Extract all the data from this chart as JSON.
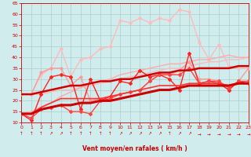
{
  "xlabel": "Vent moyen/en rafales ( km/h )",
  "xlim": [
    0,
    23
  ],
  "ylim": [
    10,
    65
  ],
  "yticks": [
    10,
    15,
    20,
    25,
    30,
    35,
    40,
    45,
    50,
    55,
    60,
    65
  ],
  "xticks": [
    0,
    1,
    2,
    3,
    4,
    5,
    6,
    7,
    8,
    9,
    10,
    11,
    12,
    13,
    14,
    15,
    16,
    17,
    18,
    19,
    20,
    21,
    22,
    23
  ],
  "bg_color": "#d0ecec",
  "grid_color": "#aacece",
  "lines": [
    {
      "comment": "light pink top line - no markers, straight-ish diagonal",
      "x": [
        0,
        1,
        2,
        3,
        4,
        5,
        6,
        7,
        8,
        9,
        10,
        11,
        12,
        13,
        14,
        15,
        16,
        17,
        18,
        19,
        20,
        21,
        22,
        23
      ],
      "y": [
        23,
        23,
        23,
        24,
        25,
        25,
        26,
        27,
        28,
        29,
        30,
        31,
        32,
        33,
        34,
        35,
        35,
        36,
        37,
        38,
        38,
        39,
        39,
        40
      ],
      "color": "#ffbbbb",
      "lw": 1.0,
      "marker": null,
      "ms": 0
    },
    {
      "comment": "light pink line with dots - high peaks 57-62",
      "x": [
        0,
        1,
        2,
        3,
        4,
        5,
        6,
        7,
        8,
        9,
        10,
        11,
        12,
        13,
        14,
        15,
        16,
        17,
        18,
        19,
        20,
        21,
        22,
        23
      ],
      "y": [
        23,
        23,
        32,
        35,
        44,
        31,
        39,
        40,
        44,
        45,
        57,
        56,
        58,
        56,
        58,
        57,
        62,
        61,
        47,
        39,
        46,
        36,
        35,
        35
      ],
      "color": "#ffbbbb",
      "lw": 1.0,
      "marker": "o",
      "ms": 2.0
    },
    {
      "comment": "medium pink line with dots - mid range",
      "x": [
        0,
        1,
        2,
        3,
        4,
        5,
        6,
        7,
        8,
        9,
        10,
        11,
        12,
        13,
        14,
        15,
        16,
        17,
        18,
        19,
        20,
        21,
        22,
        23
      ],
      "y": [
        23,
        23,
        33,
        35,
        35,
        27,
        31,
        20,
        21,
        22,
        23,
        24,
        25,
        29,
        32,
        32,
        34,
        38,
        30,
        30,
        29,
        25,
        29,
        35
      ],
      "color": "#ff9999",
      "lw": 1.0,
      "marker": "o",
      "ms": 2.0
    },
    {
      "comment": "medium pink upper diagonal - no markers",
      "x": [
        0,
        1,
        2,
        3,
        4,
        5,
        6,
        7,
        8,
        9,
        10,
        11,
        12,
        13,
        14,
        15,
        16,
        17,
        18,
        19,
        20,
        21,
        22,
        23
      ],
      "y": [
        14,
        15,
        17,
        19,
        22,
        24,
        26,
        28,
        29,
        30,
        32,
        33,
        34,
        35,
        36,
        37,
        37,
        38,
        39,
        39,
        40,
        41,
        40,
        40
      ],
      "color": "#ffaaaa",
      "lw": 1.0,
      "marker": null,
      "ms": 0
    },
    {
      "comment": "red with diamond markers - main wiggly",
      "x": [
        0,
        1,
        2,
        3,
        4,
        5,
        6,
        7,
        8,
        9,
        10,
        11,
        12,
        13,
        14,
        15,
        16,
        17,
        18,
        19,
        20,
        21,
        22,
        23
      ],
      "y": [
        14,
        11,
        23,
        31,
        32,
        31,
        16,
        30,
        20,
        22,
        29,
        28,
        34,
        31,
        32,
        30,
        25,
        42,
        28,
        29,
        28,
        25,
        29,
        28
      ],
      "color": "#ff2222",
      "lw": 1.0,
      "marker": "D",
      "ms": 2.0
    },
    {
      "comment": "red with diamond markers 2",
      "x": [
        0,
        1,
        2,
        3,
        4,
        5,
        6,
        7,
        8,
        9,
        10,
        11,
        12,
        13,
        14,
        15,
        16,
        17,
        18,
        19,
        20,
        21,
        22,
        23
      ],
      "y": [
        14,
        12,
        16,
        17,
        18,
        15,
        15,
        14,
        20,
        21,
        23,
        24,
        25,
        29,
        32,
        32,
        32,
        35,
        28,
        29,
        29,
        26,
        29,
        29
      ],
      "color": "#ff4444",
      "lw": 1.0,
      "marker": "D",
      "ms": 2.0
    },
    {
      "comment": "medium red no markers diagonal",
      "x": [
        0,
        1,
        2,
        3,
        4,
        5,
        6,
        7,
        8,
        9,
        10,
        11,
        12,
        13,
        14,
        15,
        16,
        17,
        18,
        19,
        20,
        21,
        22,
        23
      ],
      "y": [
        14,
        14,
        17,
        19,
        21,
        21,
        21,
        21,
        21,
        22,
        23,
        24,
        25,
        26,
        27,
        27,
        27,
        28,
        28,
        28,
        28,
        27,
        28,
        28
      ],
      "color": "#ff3333",
      "lw": 1.2,
      "marker": null,
      "ms": 0
    },
    {
      "comment": "dark red thick diagonal - regression line",
      "x": [
        0,
        1,
        2,
        3,
        4,
        5,
        6,
        7,
        8,
        9,
        10,
        11,
        12,
        13,
        14,
        15,
        16,
        17,
        18,
        19,
        20,
        21,
        22,
        23
      ],
      "y": [
        14,
        14,
        16,
        17,
        18,
        18,
        19,
        19,
        20,
        20,
        21,
        22,
        23,
        24,
        25,
        25,
        26,
        27,
        27,
        27,
        27,
        27,
        28,
        28
      ],
      "color": "#cc0000",
      "lw": 2.2,
      "marker": null,
      "ms": 0
    },
    {
      "comment": "dark red upper diagonal thick",
      "x": [
        0,
        1,
        2,
        3,
        4,
        5,
        6,
        7,
        8,
        9,
        10,
        11,
        12,
        13,
        14,
        15,
        16,
        17,
        18,
        19,
        20,
        21,
        22,
        23
      ],
      "y": [
        23,
        23,
        24,
        25,
        26,
        27,
        27,
        28,
        29,
        29,
        30,
        30,
        31,
        32,
        33,
        33,
        34,
        34,
        35,
        35,
        35,
        35,
        36,
        36
      ],
      "color": "#cc0000",
      "lw": 1.8,
      "marker": null,
      "ms": 0
    }
  ],
  "arrow_chars": [
    "↑",
    "↑",
    "↑",
    "↗",
    "↗",
    "↑",
    "↑",
    "↑",
    "↑",
    "↑",
    "↗",
    "↗",
    "↗",
    "↗",
    "↗",
    "↑",
    "↗",
    "↗",
    "→",
    "→",
    "→",
    "→",
    "→",
    "→"
  ]
}
